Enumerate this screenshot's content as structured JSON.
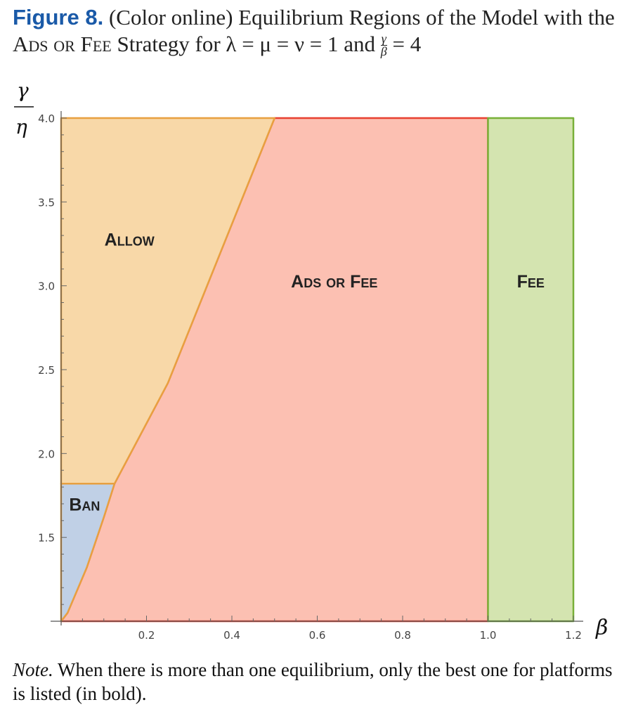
{
  "caption": {
    "figure_label": "Figure 8.",
    "text_before": "(Color online) Equilibrium Regions of the Model with the",
    "strategy": "Ads or Fee",
    "text_after": "Strategy for λ = μ = ν = 1 and",
    "ratio_num": "γ",
    "ratio_den": "β",
    "ratio_value": "= 4"
  },
  "note": {
    "label": "Note.",
    "text": "When there is more than one equilibrium, only the best one for platforms is listed (in bold)."
  },
  "chart_data": {
    "type": "area",
    "x_symbol": "β",
    "y_symbol_num": "γ",
    "y_symbol_den": "η",
    "xlim": [
      0,
      1.2
    ],
    "ylim": [
      1.0,
      4.0
    ],
    "x_ticks": [
      "0.2",
      "0.4",
      "0.6",
      "0.8",
      "1.0",
      "1.2"
    ],
    "y_ticks": [
      "1.5",
      "2.0",
      "2.5",
      "3.0",
      "3.5",
      "4.0"
    ],
    "x_tick_values": [
      0.2,
      0.4,
      0.6,
      0.8,
      1.0,
      1.2
    ],
    "y_tick_values": [
      1.5,
      2.0,
      2.5,
      3.0,
      3.5,
      4.0
    ],
    "grid": false,
    "regions": [
      {
        "name": "Allow",
        "fill": "#f8d8a8",
        "stroke": "#e8a040",
        "polygon": [
          [
            0,
            1.82
          ],
          [
            0.125,
            1.82
          ],
          [
            0.25,
            2.42
          ],
          [
            0.5,
            4.0
          ],
          [
            0,
            4.0
          ]
        ]
      },
      {
        "name": "Ban",
        "fill": "#c0d0e6",
        "stroke": "#e8a040",
        "polygon": [
          [
            0,
            1.0
          ],
          [
            0.015,
            1.05
          ],
          [
            0.06,
            1.32
          ],
          [
            0.1,
            1.62
          ],
          [
            0.125,
            1.82
          ],
          [
            0,
            1.82
          ]
        ]
      },
      {
        "name": "Ads or Fee",
        "fill": "#fcc0b2",
        "stroke": "#e84030",
        "polygon": [
          [
            0,
            1.0
          ],
          [
            0.015,
            1.05
          ],
          [
            0.06,
            1.32
          ],
          [
            0.1,
            1.62
          ],
          [
            0.125,
            1.82
          ],
          [
            0.25,
            2.42
          ],
          [
            0.5,
            4.0
          ],
          [
            1.0,
            4.0
          ],
          [
            1.0,
            1.0
          ]
        ]
      },
      {
        "name": "Fee",
        "fill": "#d4e4b0",
        "stroke": "#78b038",
        "polygon": [
          [
            1.0,
            1.0
          ],
          [
            1.2,
            1.0
          ],
          [
            1.2,
            4.0
          ],
          [
            1.0,
            4.0
          ]
        ]
      }
    ],
    "labels": [
      {
        "text": "Allow",
        "x": 0.16,
        "y": 3.24
      },
      {
        "text": "Ads or Fee",
        "x": 0.64,
        "y": 2.99
      },
      {
        "text": "Fee",
        "x": 1.1,
        "y": 2.99
      },
      {
        "text": "Ban",
        "x": 0.055,
        "y": 1.66
      }
    ]
  }
}
